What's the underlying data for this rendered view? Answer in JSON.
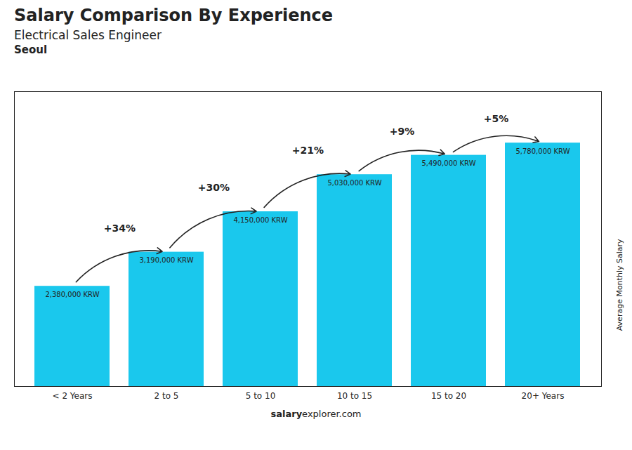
{
  "chart_data": {
    "type": "bar",
    "title": "Salary Comparison By Experience",
    "subtitle": "Electrical Sales Engineer",
    "city": "Seoul",
    "ylabel": "Average Monthly Salary",
    "categories": [
      "< 2 Years",
      "2 to 5",
      "5 to 10",
      "10 to 15",
      "15 to 20",
      "20+ Years"
    ],
    "values": [
      2380000,
      3190000,
      4150000,
      5030000,
      5490000,
      5780000
    ],
    "value_labels": [
      "2,380,000 KRW",
      "3,190,000 KRW",
      "4,150,000 KRW",
      "5,030,000 KRW",
      "5,490,000 KRW",
      "5,780,000 KRW"
    ],
    "change_labels": [
      "+34%",
      "+30%",
      "+21%",
      "+9%",
      "+5%"
    ],
    "caption": [
      "salary",
      "explorer.com"
    ],
    "color": "#1AC8ED",
    "ylim": [
      0,
      7000000
    ],
    "data_labels": true,
    "tick_labels": "x",
    "grid": false
  }
}
